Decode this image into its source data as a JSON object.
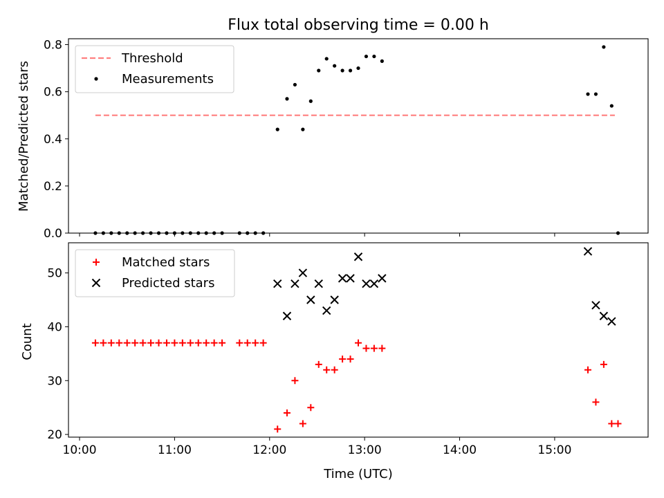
{
  "chart_data": [
    {
      "type": "scatter",
      "title": "Flux total observing time = 0.00 h",
      "xlabel": "",
      "ylabel": "Matched/Predicted stars",
      "xlim": [
        "09:53",
        "15:59"
      ],
      "ylim": [
        0,
        0.825
      ],
      "x_ticks": [
        "10:00",
        "11:00",
        "12:00",
        "13:00",
        "14:00",
        "15:00"
      ],
      "y_ticks": [
        "0.0",
        "0.2",
        "0.4",
        "0.6",
        "0.8"
      ],
      "legend_position": "top-left",
      "threshold": {
        "name": "Threshold",
        "value": 0.5,
        "x_range": [
          "10:10",
          "15:38"
        ],
        "color": "#ff7f7f",
        "style": "dashed"
      },
      "series": [
        {
          "name": "Measurements",
          "marker": "dot",
          "color": "#000000",
          "points": [
            [
              "10:10",
              0.0
            ],
            [
              "10:15",
              0.0
            ],
            [
              "10:20",
              0.0
            ],
            [
              "10:25",
              0.0
            ],
            [
              "10:30",
              0.0
            ],
            [
              "10:35",
              0.0
            ],
            [
              "10:40",
              0.0
            ],
            [
              "10:45",
              0.0
            ],
            [
              "10:50",
              0.0
            ],
            [
              "10:55",
              0.0
            ],
            [
              "11:00",
              0.0
            ],
            [
              "11:05",
              0.0
            ],
            [
              "11:10",
              0.0
            ],
            [
              "11:15",
              0.0
            ],
            [
              "11:20",
              0.0
            ],
            [
              "11:25",
              0.0
            ],
            [
              "11:30",
              0.0
            ],
            [
              "11:41",
              0.0
            ],
            [
              "11:46",
              0.0
            ],
            [
              "11:51",
              0.0
            ],
            [
              "11:56",
              0.0
            ],
            [
              "12:05",
              0.44
            ],
            [
              "12:11",
              0.57
            ],
            [
              "12:16",
              0.63
            ],
            [
              "12:21",
              0.44
            ],
            [
              "12:26",
              0.56
            ],
            [
              "12:31",
              0.69
            ],
            [
              "12:36",
              0.74
            ],
            [
              "12:41",
              0.71
            ],
            [
              "12:46",
              0.69
            ],
            [
              "12:51",
              0.69
            ],
            [
              "12:56",
              0.7
            ],
            [
              "13:01",
              0.75
            ],
            [
              "13:06",
              0.75
            ],
            [
              "13:11",
              0.73
            ],
            [
              "15:21",
              0.59
            ],
            [
              "15:26",
              0.59
            ],
            [
              "15:31",
              0.79
            ],
            [
              "15:36",
              0.54
            ],
            [
              "15:40",
              0.0
            ]
          ]
        }
      ]
    },
    {
      "type": "scatter",
      "title": "",
      "xlabel": "Time (UTC)",
      "ylabel": "Count",
      "xlim": [
        "09:53",
        "15:59"
      ],
      "ylim": [
        19.5,
        55.6
      ],
      "x_ticks": [
        "10:00",
        "11:00",
        "12:00",
        "13:00",
        "14:00",
        "15:00"
      ],
      "y_ticks": [
        "20",
        "30",
        "40",
        "50"
      ],
      "legend_position": "top-left",
      "series": [
        {
          "name": "Matched stars",
          "marker": "plus",
          "color": "#ff0000",
          "points": [
            [
              "10:10",
              37
            ],
            [
              "10:15",
              37
            ],
            [
              "10:20",
              37
            ],
            [
              "10:25",
              37
            ],
            [
              "10:30",
              37
            ],
            [
              "10:35",
              37
            ],
            [
              "10:40",
              37
            ],
            [
              "10:45",
              37
            ],
            [
              "10:50",
              37
            ],
            [
              "10:55",
              37
            ],
            [
              "11:00",
              37
            ],
            [
              "11:05",
              37
            ],
            [
              "11:10",
              37
            ],
            [
              "11:15",
              37
            ],
            [
              "11:20",
              37
            ],
            [
              "11:25",
              37
            ],
            [
              "11:30",
              37
            ],
            [
              "11:41",
              37
            ],
            [
              "11:46",
              37
            ],
            [
              "11:51",
              37
            ],
            [
              "11:56",
              37
            ],
            [
              "12:05",
              21
            ],
            [
              "12:11",
              24
            ],
            [
              "12:16",
              30
            ],
            [
              "12:21",
              22
            ],
            [
              "12:26",
              25
            ],
            [
              "12:31",
              33
            ],
            [
              "12:36",
              32
            ],
            [
              "12:41",
              32
            ],
            [
              "12:46",
              34
            ],
            [
              "12:51",
              34
            ],
            [
              "12:56",
              37
            ],
            [
              "13:01",
              36
            ],
            [
              "13:06",
              36
            ],
            [
              "13:11",
              36
            ],
            [
              "15:21",
              32
            ],
            [
              "15:26",
              26
            ],
            [
              "15:31",
              33
            ],
            [
              "15:36",
              22
            ],
            [
              "15:40",
              22
            ]
          ]
        },
        {
          "name": "Predicted stars",
          "marker": "x",
          "color": "#000000",
          "points": [
            [
              "12:05",
              48
            ],
            [
              "12:11",
              42
            ],
            [
              "12:16",
              48
            ],
            [
              "12:21",
              50
            ],
            [
              "12:26",
              45
            ],
            [
              "12:31",
              48
            ],
            [
              "12:36",
              43
            ],
            [
              "12:41",
              45
            ],
            [
              "12:46",
              49
            ],
            [
              "12:51",
              49
            ],
            [
              "12:56",
              53
            ],
            [
              "13:01",
              48
            ],
            [
              "13:06",
              48
            ],
            [
              "13:11",
              49
            ],
            [
              "15:21",
              54
            ],
            [
              "15:26",
              44
            ],
            [
              "15:31",
              42
            ],
            [
              "15:36",
              41
            ]
          ]
        }
      ]
    }
  ]
}
